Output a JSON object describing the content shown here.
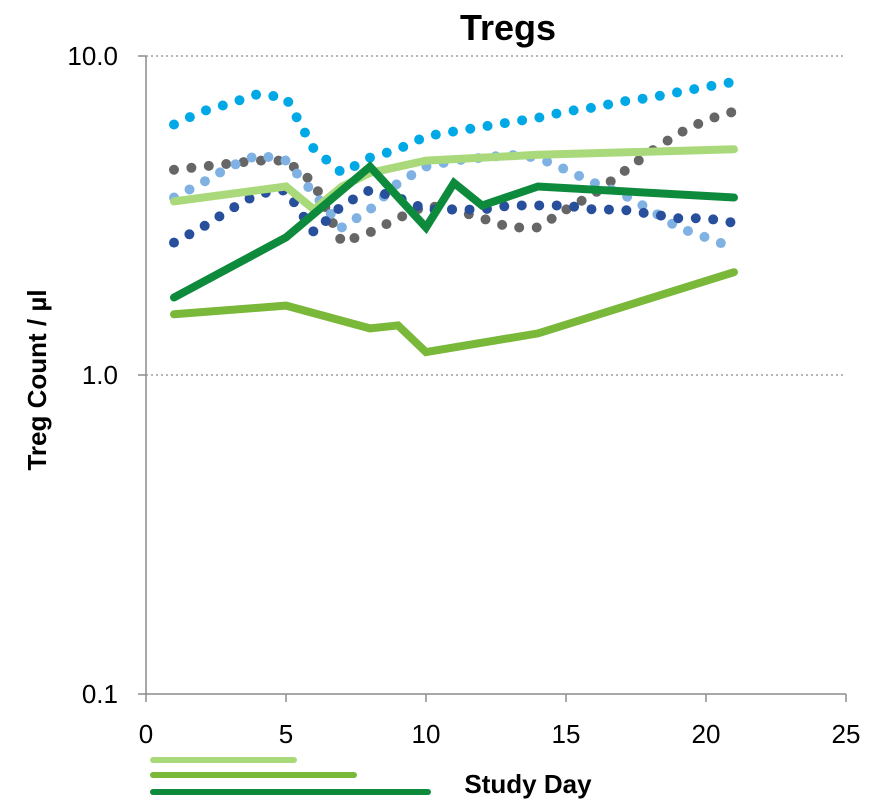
{
  "chart_data": {
    "type": "line",
    "title": "Tregs",
    "xlabel": "Study Day",
    "ylabel": "Treg Count / µl",
    "xlim": [
      0,
      25
    ],
    "ylim": [
      0.1,
      10
    ],
    "yscale": "log",
    "x_ticks": [
      0,
      5,
      10,
      15,
      20,
      25
    ],
    "x_tick_labels": [
      "0",
      "5",
      "10",
      "15",
      "20",
      "25"
    ],
    "y_ticks": [
      0.1,
      1,
      10
    ],
    "y_tick_labels": [
      "0.1",
      "1.0",
      "10.0"
    ],
    "grid": "horizontal-dotted",
    "legend": "bottom-left",
    "series": [
      {
        "color": "#00a9e6",
        "style": "dotted",
        "x": [
          1,
          2,
          3,
          4,
          5,
          6,
          7,
          8,
          9,
          10,
          11,
          12,
          13,
          14,
          15,
          16,
          17,
          18,
          19,
          20,
          21
        ],
        "y": [
          6.1,
          6.7,
          7.1,
          7.6,
          7.4,
          5.1,
          4.3,
          4.8,
          5.1,
          5.6,
          5.8,
          6.0,
          6.2,
          6.4,
          6.7,
          6.9,
          7.2,
          7.4,
          7.7,
          8.0,
          8.3
        ]
      },
      {
        "color": "#666666",
        "style": "dotted",
        "x": [
          1,
          2,
          3,
          4,
          5,
          6,
          7,
          8,
          9,
          10,
          11,
          12,
          13,
          14,
          15,
          16,
          17,
          18,
          19,
          20,
          21
        ],
        "y": [
          4.4,
          4.5,
          4.6,
          4.7,
          4.7,
          4.0,
          2.6,
          2.8,
          3.1,
          3.4,
          3.3,
          3.1,
          2.9,
          2.9,
          3.3,
          3.7,
          4.3,
          5.0,
          5.7,
          6.3,
          6.7
        ]
      },
      {
        "color": "#7fb2e3",
        "style": "dotted",
        "x": [
          1,
          2,
          3,
          4,
          5,
          6,
          7,
          8,
          9,
          10,
          11,
          12,
          13,
          14,
          15,
          16,
          17,
          18,
          19,
          20,
          21
        ],
        "y": [
          3.6,
          4.0,
          4.5,
          4.9,
          4.7,
          3.7,
          2.9,
          3.3,
          4.0,
          4.5,
          4.7,
          4.8,
          4.9,
          4.8,
          4.4,
          4.0,
          3.7,
          3.3,
          2.9,
          2.7,
          2.5
        ]
      },
      {
        "color": "#284f9c",
        "style": "dotted",
        "x": [
          1,
          2,
          3,
          4,
          5,
          6,
          7,
          8,
          9,
          10,
          11,
          12,
          13,
          14,
          15,
          16,
          17,
          18,
          19,
          20,
          21
        ],
        "y": [
          2.6,
          2.9,
          3.3,
          3.7,
          3.8,
          2.8,
          3.4,
          3.8,
          3.6,
          3.3,
          3.3,
          3.3,
          3.4,
          3.4,
          3.4,
          3.3,
          3.3,
          3.2,
          3.1,
          3.1,
          3.0
        ]
      },
      {
        "color": "#a9d97a",
        "style": "solid",
        "x": [
          1,
          5,
          6,
          7,
          8,
          10,
          14,
          21
        ],
        "y": [
          3.5,
          3.9,
          3.3,
          3.9,
          4.3,
          4.7,
          4.9,
          5.1
        ]
      },
      {
        "color": "#7ab83a",
        "style": "solid",
        "x": [
          1,
          5,
          8,
          9,
          10,
          14,
          21
        ],
        "y": [
          1.55,
          1.65,
          1.4,
          1.43,
          1.18,
          1.35,
          2.1
        ]
      },
      {
        "color": "#0e8a3c",
        "style": "solid",
        "x": [
          1,
          5,
          8,
          10,
          11,
          12,
          14,
          21
        ],
        "y": [
          1.75,
          2.7,
          4.5,
          2.9,
          4.0,
          3.4,
          3.9,
          3.6
        ]
      }
    ],
    "legend_entries": [
      {
        "color": "#a9d97a"
      },
      {
        "color": "#7ab83a"
      },
      {
        "color": "#0e8a3c"
      }
    ]
  }
}
